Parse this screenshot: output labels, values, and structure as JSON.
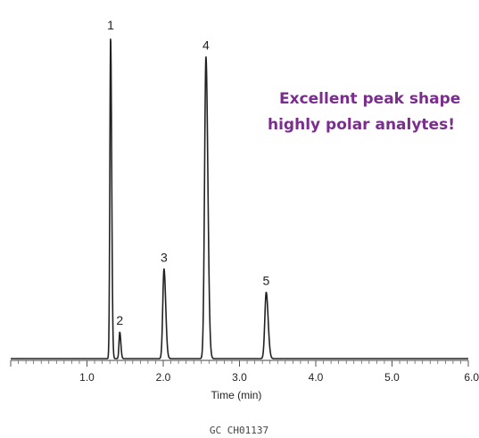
{
  "chart_data": {
    "type": "line",
    "xlabel": "Time (min)",
    "ylabel": "",
    "xlim": [
      0.0,
      6.0
    ],
    "ylim": [
      0,
      100
    ],
    "x_ticks": [
      "1.0",
      "2.0",
      "3.0",
      "4.0",
      "5.0",
      "6.0"
    ],
    "x_tick_values": [
      1.0,
      2.0,
      3.0,
      4.0,
      5.0,
      6.0
    ],
    "grid": false,
    "peaks": [
      {
        "label": "1",
        "x": 1.31,
        "height": 97
      },
      {
        "label": "2",
        "x": 1.43,
        "height": 8
      },
      {
        "label": "3",
        "x": 2.01,
        "height": 27
      },
      {
        "label": "4",
        "x": 2.56,
        "height": 91
      },
      {
        "label": "5",
        "x": 3.35,
        "height": 20
      }
    ],
    "annotation": {
      "lines": [
        "Excellent peak shape",
        "highly polar analytes!"
      ],
      "color": "#7b2d8e"
    },
    "line_color": "#222222"
  },
  "figure_id": "GC CH01137"
}
